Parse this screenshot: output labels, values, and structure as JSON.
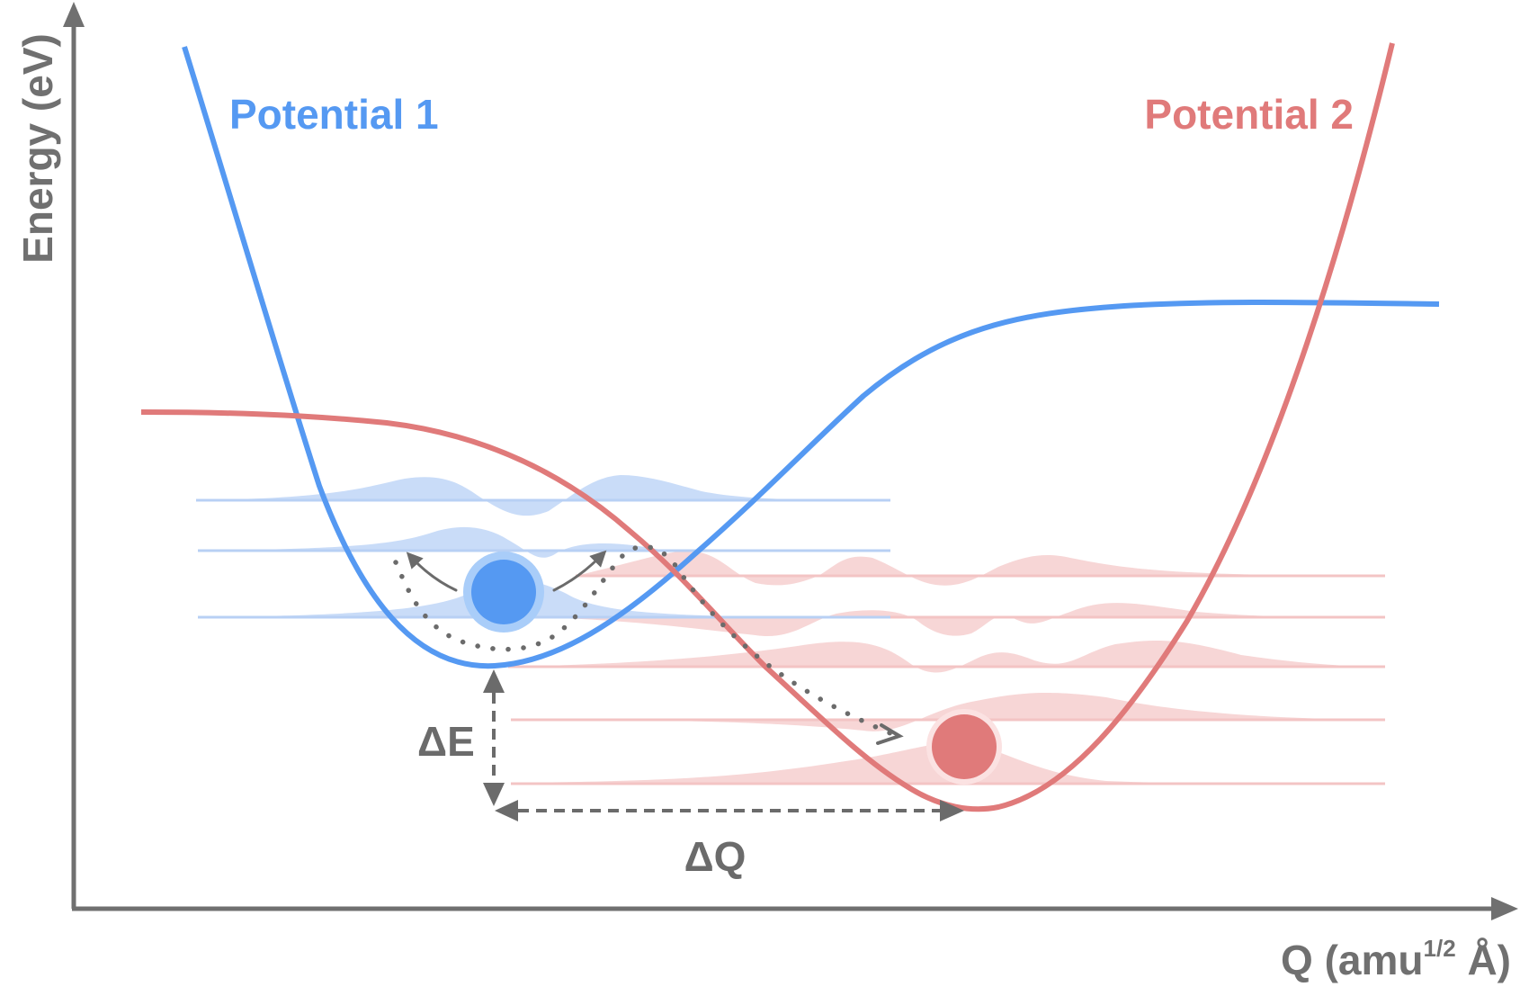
{
  "labels": {
    "y_axis": "Energy (eV)",
    "x_axis_main": "Q (amu",
    "x_axis_sup": "1/2",
    "x_axis_end": " Å)",
    "potential_1": "Potential 1",
    "potential_2": "Potential 2",
    "delta_e": "ΔE",
    "delta_q": "ΔQ"
  },
  "colors": {
    "potential_1": "#5599f2",
    "potential_2": "#e07a7a",
    "potential_1_fill": "#c9dcf8",
    "potential_2_fill": "#f7d6d6",
    "axis": "#707070",
    "annotation": "#6b6b6b"
  }
}
